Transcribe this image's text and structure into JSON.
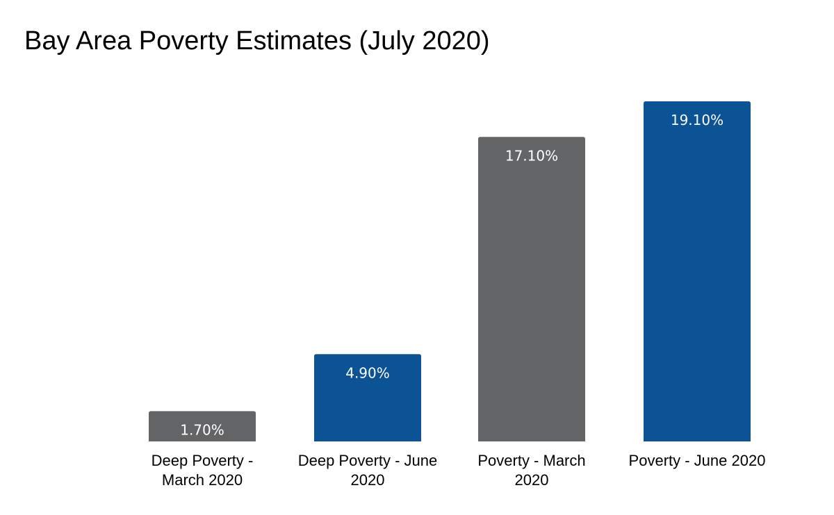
{
  "chart_data": {
    "type": "bar",
    "title": "Bay Area Poverty Estimates (July 2020)",
    "categories": [
      [
        "Deep Poverty -",
        "March 2020"
      ],
      [
        "Deep Poverty - June",
        "2020"
      ],
      [
        "Poverty - March",
        "2020"
      ],
      [
        "Poverty - June 2020"
      ]
    ],
    "values": [
      1.7,
      4.9,
      17.1,
      19.1
    ],
    "data_labels": [
      "1.70%",
      "4.90%",
      "17.10%",
      "19.10%"
    ],
    "colors": [
      "#636466",
      "#0b5394",
      "#636466",
      "#0b5394"
    ],
    "xlabel": "",
    "ylabel": "",
    "ylim": [
      0,
      19.1
    ],
    "grid": false,
    "legend": "none"
  }
}
